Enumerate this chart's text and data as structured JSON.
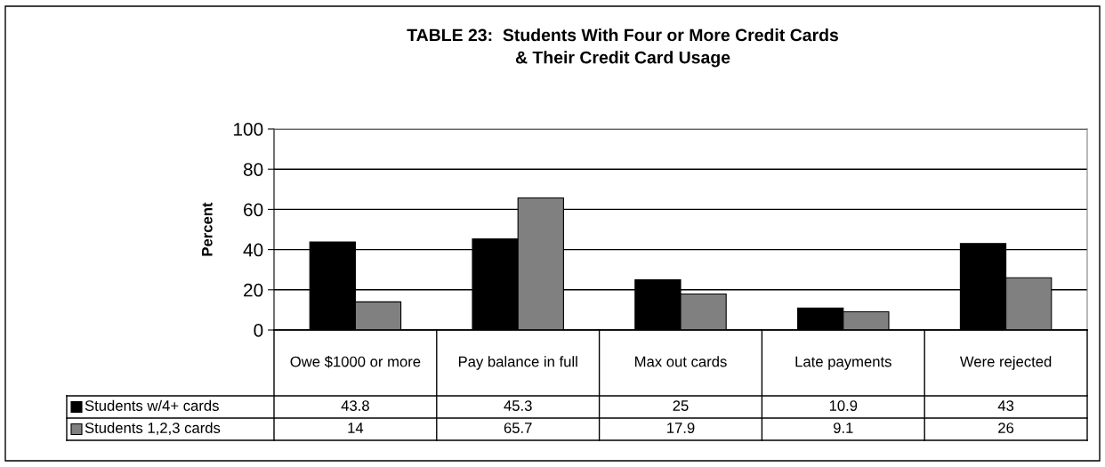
{
  "chart_data": {
    "type": "bar",
    "title": "TABLE 23:  Students With Four or More Credit Cards\n& Their Credit Card Usage",
    "ylabel": "Percent",
    "categories": [
      "Owe $1000 or more",
      "Pay balance in full",
      "Max out cards",
      "Late payments",
      "Were rejected"
    ],
    "series": [
      {
        "name": "Students w/4+ cards",
        "color": "#000000",
        "values": [
          43.8,
          45.3,
          25,
          10.9,
          43
        ]
      },
      {
        "name": "Students 1,2,3 cards",
        "color": "#808080",
        "values": [
          14,
          65.7,
          17.9,
          9.1,
          26
        ]
      }
    ],
    "ylim": [
      0,
      100
    ],
    "yticks": [
      0,
      20,
      40,
      60,
      80,
      100
    ],
    "grid": "y",
    "data_labels": true,
    "legend": "bottom left"
  }
}
